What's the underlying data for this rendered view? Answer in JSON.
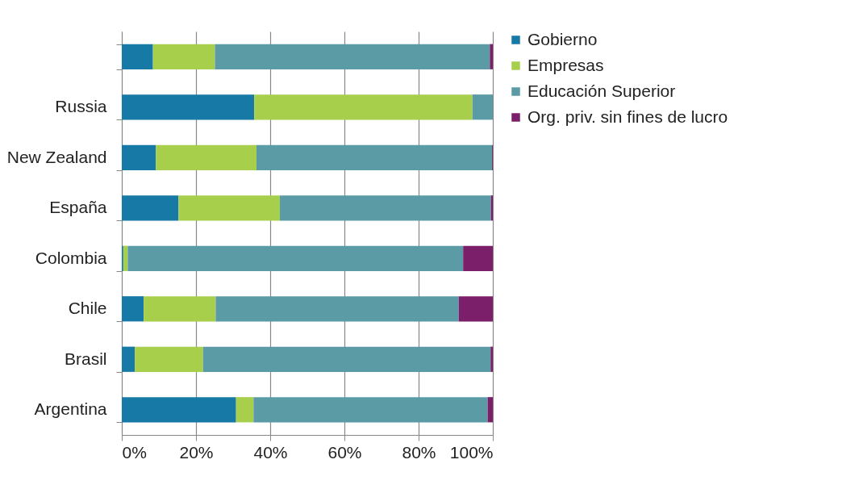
{
  "chart_data": {
    "type": "bar",
    "orientation": "horizontal",
    "stacked": true,
    "categories": [
      null,
      "Russia",
      "New Zealand",
      "España",
      "Colombia",
      "Chile",
      "Brasil",
      "Argentina"
    ],
    "series": [
      {
        "name": "Gobierno",
        "color": "#1679a6",
        "values": [
          8.4,
          35.7,
          9.2,
          15.3,
          0.4,
          5.9,
          3.5,
          30.8
        ]
      },
      {
        "name": "Empresas",
        "color": "#a8cf4c",
        "values": [
          16.7,
          58.8,
          27.1,
          27.3,
          1.2,
          19.4,
          18.4,
          4.7
        ]
      },
      {
        "name": "Educación Superior",
        "color": "#5a9ba6",
        "values": [
          74.1,
          5.5,
          63.5,
          56.9,
          90.4,
          65.5,
          77.5,
          63.1
        ]
      },
      {
        "name": "Org. priv. sin fines de lucro",
        "color": "#7b1f6a",
        "values": [
          0.8,
          0,
          0.2,
          0.5,
          8.0,
          9.2,
          0.6,
          1.4
        ]
      }
    ],
    "xlim": [
      0,
      100
    ],
    "xticks": [
      {
        "value": 0,
        "label": "0%"
      },
      {
        "value": 20,
        "label": "20%"
      },
      {
        "value": 40,
        "label": "40%"
      },
      {
        "value": 60,
        "label": "60%"
      },
      {
        "value": 80,
        "label": "80%"
      },
      {
        "value": 100,
        "label": "100%"
      }
    ],
    "grid": "x",
    "legend": "right"
  }
}
